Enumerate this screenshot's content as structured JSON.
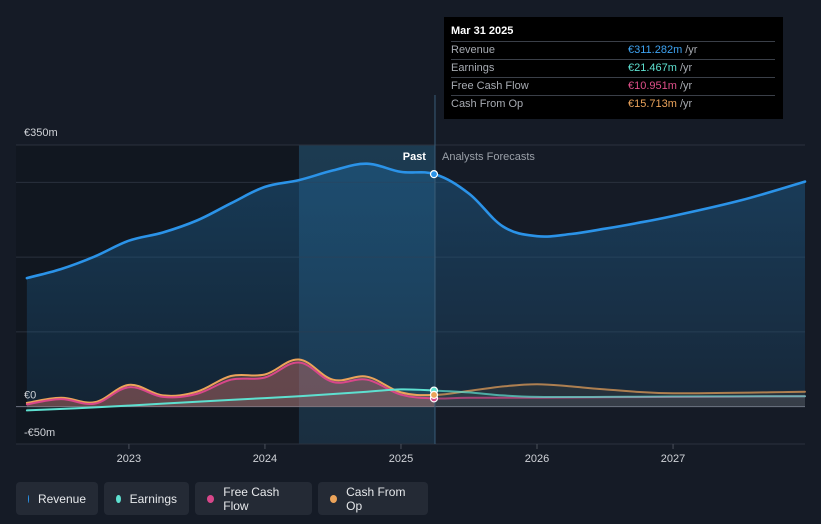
{
  "tooltip": {
    "date": "Mar 31 2025",
    "rows": [
      {
        "label": "Revenue",
        "value": "€311.282m",
        "unit": "/yr",
        "color": "#3ea3f2"
      },
      {
        "label": "Earnings",
        "value": "€21.467m",
        "unit": "/yr",
        "color": "#5ee0d0"
      },
      {
        "label": "Free Cash Flow",
        "value": "€10.951m",
        "unit": "/yr",
        "color": "#e0508a"
      },
      {
        "label": "Cash From Op",
        "value": "€15.713m",
        "unit": "/yr",
        "color": "#eba35a"
      }
    ]
  },
  "legend": [
    {
      "label": "Revenue",
      "color": "#2b93e8"
    },
    {
      "label": "Earnings",
      "color": "#5ee0d0"
    },
    {
      "label": "Free Cash Flow",
      "color": "#d8478a"
    },
    {
      "label": "Cash From Op",
      "color": "#eba35a"
    }
  ],
  "chart_data": {
    "type": "line",
    "title": "",
    "xlabel": "",
    "ylabel": "",
    "ylim": [
      -50,
      350
    ],
    "xlim": [
      2022.17,
      2027.97
    ],
    "y_tick_labels": [
      {
        "value": 350,
        "label": "€350m"
      },
      {
        "value": 0,
        "label": "€0"
      },
      {
        "value": -50,
        "label": "-€50m"
      }
    ],
    "x_tick_labels": [
      {
        "value": 2023,
        "label": "2023"
      },
      {
        "value": 2024,
        "label": "2024"
      },
      {
        "value": 2025,
        "label": "2025"
      },
      {
        "value": 2026,
        "label": "2026"
      },
      {
        "value": 2027,
        "label": "2027"
      }
    ],
    "divider_x": 2025.25,
    "highlight_start_x": 2024.25,
    "past_label": "Past",
    "forecast_label": "Analysts Forecasts",
    "series": [
      {
        "name": "Revenue",
        "color": "#2b93e8",
        "points": [
          [
            2022.25,
            172
          ],
          [
            2022.5,
            184
          ],
          [
            2022.75,
            201
          ],
          [
            2023.0,
            222
          ],
          [
            2023.25,
            233
          ],
          [
            2023.5,
            249
          ],
          [
            2023.75,
            272
          ],
          [
            2024.0,
            294
          ],
          [
            2024.25,
            303
          ],
          [
            2024.5,
            316
          ],
          [
            2024.75,
            325
          ],
          [
            2025.0,
            314
          ],
          [
            2025.25,
            311
          ],
          [
            2025.5,
            285
          ],
          [
            2025.75,
            241
          ],
          [
            2026.0,
            228
          ],
          [
            2026.25,
            231
          ],
          [
            2026.5,
            238
          ],
          [
            2026.75,
            246
          ],
          [
            2027.0,
            255
          ],
          [
            2027.5,
            276
          ],
          [
            2027.97,
            301
          ]
        ]
      },
      {
        "name": "Earnings",
        "color": "#5ee0d0",
        "points": [
          [
            2022.25,
            -5
          ],
          [
            2022.75,
            -1
          ],
          [
            2023.25,
            4
          ],
          [
            2023.75,
            9
          ],
          [
            2024.25,
            14
          ],
          [
            2024.75,
            20
          ],
          [
            2025.0,
            23
          ],
          [
            2025.25,
            21.5
          ],
          [
            2025.5,
            19
          ],
          [
            2025.75,
            15
          ],
          [
            2026.0,
            13
          ],
          [
            2026.5,
            13
          ],
          [
            2027.0,
            13.5
          ],
          [
            2027.97,
            14
          ]
        ]
      },
      {
        "name": "Free Cash Flow",
        "color": "#d8478a",
        "points": [
          [
            2022.25,
            3
          ],
          [
            2022.5,
            10
          ],
          [
            2022.75,
            4
          ],
          [
            2023.0,
            26
          ],
          [
            2023.25,
            13
          ],
          [
            2023.5,
            17
          ],
          [
            2023.75,
            36
          ],
          [
            2024.0,
            39
          ],
          [
            2024.25,
            59
          ],
          [
            2024.5,
            33
          ],
          [
            2024.75,
            36
          ],
          [
            2025.0,
            16
          ],
          [
            2025.25,
            11
          ],
          [
            2025.5,
            12
          ],
          [
            2026.0,
            12
          ],
          [
            2026.5,
            12.5
          ],
          [
            2027.0,
            13
          ],
          [
            2027.97,
            14
          ]
        ]
      },
      {
        "name": "Cash From Op",
        "color": "#eba35a",
        "points": [
          [
            2022.25,
            5
          ],
          [
            2022.5,
            12
          ],
          [
            2022.75,
            6
          ],
          [
            2023.0,
            29
          ],
          [
            2023.25,
            15
          ],
          [
            2023.5,
            20
          ],
          [
            2023.75,
            41
          ],
          [
            2024.0,
            43
          ],
          [
            2024.25,
            63
          ],
          [
            2024.5,
            36
          ],
          [
            2024.75,
            40
          ],
          [
            2025.0,
            19
          ],
          [
            2025.25,
            15.7
          ],
          [
            2025.5,
            21
          ],
          [
            2025.75,
            27
          ],
          [
            2026.0,
            30
          ],
          [
            2026.25,
            27
          ],
          [
            2026.5,
            23
          ],
          [
            2027.0,
            18
          ],
          [
            2027.97,
            20
          ]
        ]
      }
    ]
  }
}
